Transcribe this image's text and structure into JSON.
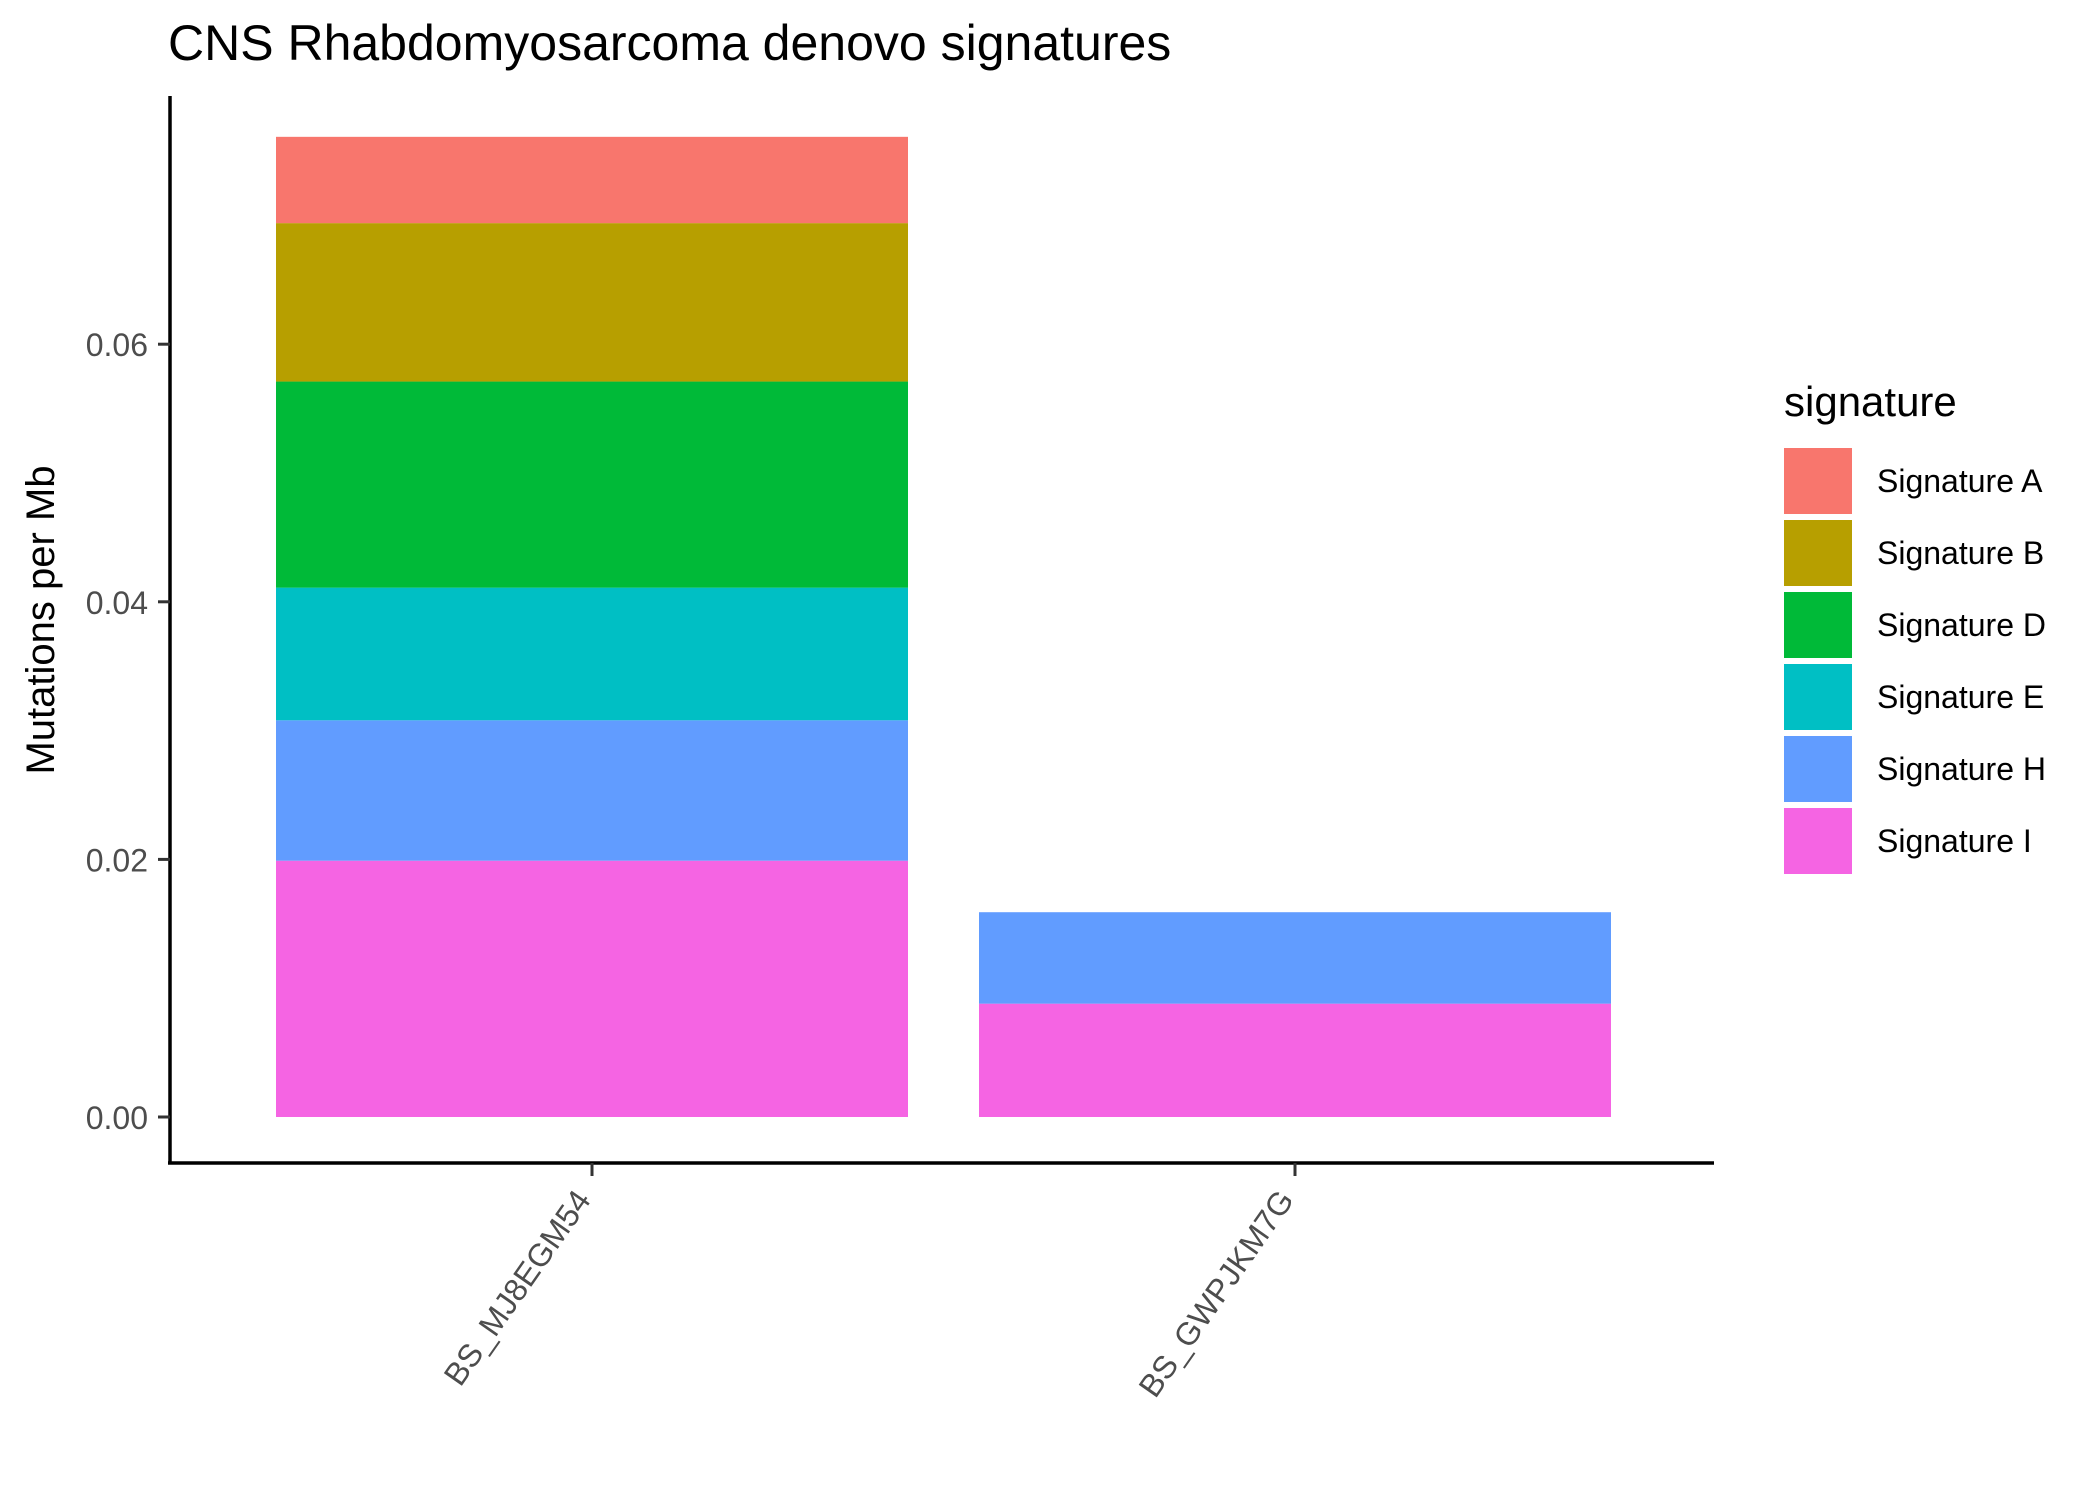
{
  "chart_data": {
    "type": "bar",
    "stacked": true,
    "title": "CNS Rhabdomyosarcoma denovo signatures",
    "xlabel": "",
    "ylabel": "Mutations per Mb",
    "ylim": [
      0,
      0.0795
    ],
    "y_ticks": [
      {
        "value": 0.0,
        "label": "0.00"
      },
      {
        "value": 0.02,
        "label": "0.02"
      },
      {
        "value": 0.04,
        "label": "0.04"
      },
      {
        "value": 0.06,
        "label": "0.06"
      }
    ],
    "categories": [
      "BS_MJ8EGM54",
      "BS_GWPJKM7G"
    ],
    "series": [
      {
        "name": "Signature A",
        "color": "#F8766D",
        "values": [
          0.0067,
          0.0
        ]
      },
      {
        "name": "Signature B",
        "color": "#B79F00",
        "values": [
          0.0123,
          0.0
        ]
      },
      {
        "name": "Signature D",
        "color": "#00BA38",
        "values": [
          0.016,
          0.0
        ]
      },
      {
        "name": "Signature E",
        "color": "#00BFC4",
        "values": [
          0.0103,
          0.0
        ]
      },
      {
        "name": "Signature H",
        "color": "#619CFF",
        "values": [
          0.0109,
          0.0071
        ]
      },
      {
        "name": "Signature I",
        "color": "#F564E3",
        "values": [
          0.0199,
          0.0088
        ]
      }
    ],
    "stack_order_bottom_to_top": [
      "Signature I",
      "Signature H",
      "Signature E",
      "Signature D",
      "Signature B",
      "Signature A"
    ],
    "legend": {
      "title": "signature",
      "position": "right"
    },
    "grid": false
  }
}
